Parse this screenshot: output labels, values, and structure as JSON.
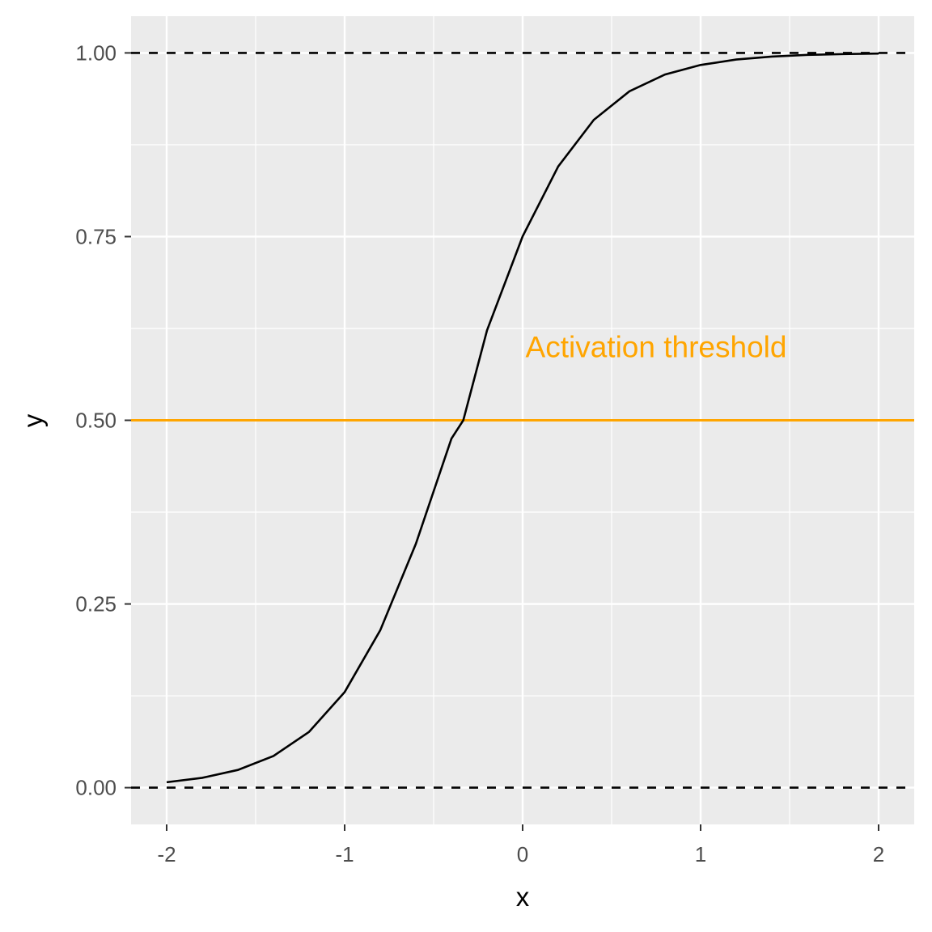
{
  "chart_data": {
    "type": "line",
    "title": "",
    "xlabel": "x",
    "ylabel": "y",
    "xlim": [
      -2.2,
      2.2
    ],
    "ylim": [
      -0.05,
      1.05
    ],
    "x_ticks": [
      -2,
      -1,
      0,
      1,
      2
    ],
    "x_tick_labels": [
      "-2",
      "-1",
      "0",
      "1",
      "2"
    ],
    "y_ticks": [
      0,
      0.25,
      0.5,
      0.75,
      1
    ],
    "y_tick_labels": [
      "0.00",
      "0.25",
      "0.50",
      "0.75",
      "1.00"
    ],
    "grid": true,
    "series": [
      {
        "x": [
          -2.0,
          -1.8,
          -1.6,
          -1.4,
          -1.2,
          -1.0,
          -0.8,
          -0.6,
          -0.4,
          -0.3333,
          -0.2,
          0.0,
          0.2,
          0.4,
          0.6,
          0.8,
          1.0,
          1.2,
          1.4,
          1.6,
          1.8,
          2.0
        ],
        "y": [
          0.0074,
          0.0134,
          0.0241,
          0.0431,
          0.0759,
          0.1301,
          0.2142,
          0.3318,
          0.475,
          0.5,
          0.6225,
          0.7503,
          0.8455,
          0.9089,
          0.9478,
          0.9706,
          0.9836,
          0.991,
          0.995,
          0.9973,
          0.9985,
          0.9992
        ],
        "color": "#000000"
      }
    ],
    "reference_lines": [
      {
        "y": 1.0,
        "style": "dashed",
        "color": "#000000"
      },
      {
        "y": 0.0,
        "style": "dashed",
        "color": "#000000"
      },
      {
        "y": 0.5,
        "style": "solid",
        "color": "#FFA500"
      }
    ],
    "annotations": [
      {
        "text": "Activation threshold",
        "x": 0.75,
        "y": 0.6,
        "color": "#FFA500"
      }
    ]
  },
  "colors": {
    "panel_background": "#EBEBEB",
    "grid": "#FFFFFF",
    "threshold": "#FFA500"
  }
}
